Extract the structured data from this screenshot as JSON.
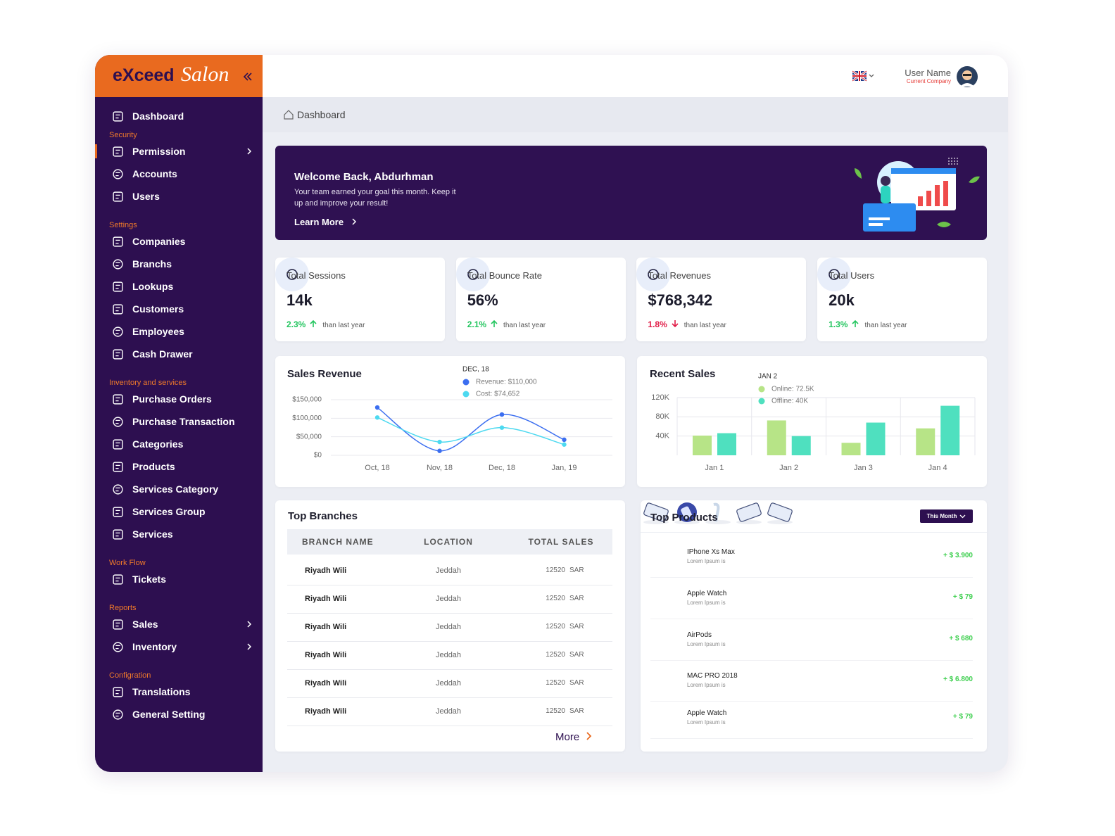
{
  "brand": {
    "name": "eXceed",
    "script": "Salon"
  },
  "sidebar": {
    "top": {
      "label": "Dashboard"
    },
    "sections": [
      {
        "title": "Security",
        "items": [
          {
            "label": "Permission",
            "expandable": true,
            "active": true
          },
          {
            "label": "Accounts"
          },
          {
            "label": "Users"
          }
        ]
      },
      {
        "title": "Settings",
        "items": [
          {
            "label": "Companies"
          },
          {
            "label": "Branchs"
          },
          {
            "label": "Lookups"
          },
          {
            "label": "Customers"
          },
          {
            "label": "Employees"
          },
          {
            "label": "Cash Drawer"
          }
        ]
      },
      {
        "title": "Inventory and services",
        "items": [
          {
            "label": "Purchase Orders"
          },
          {
            "label": "Purchase Transaction"
          },
          {
            "label": "Categories"
          },
          {
            "label": "Products"
          },
          {
            "label": "Services Category"
          },
          {
            "label": "Services Group"
          },
          {
            "label": "Services"
          }
        ]
      },
      {
        "title": "Work Flow",
        "items": [
          {
            "label": "Tickets"
          }
        ]
      },
      {
        "title": "Reports",
        "items": [
          {
            "label": "Sales",
            "expandable": true
          },
          {
            "label": "Inventory",
            "expandable": true
          }
        ]
      },
      {
        "title": "Configration",
        "items": [
          {
            "label": "Translations"
          },
          {
            "label": "General Setting"
          }
        ]
      }
    ]
  },
  "topbar": {
    "user": "User Name",
    "company": "Current Company"
  },
  "breadcrumb": "Dashboard",
  "banner": {
    "title": "Welcome Back, Abdurhman",
    "text": "Your team earned your goal this month. Keep it up and improve your result!",
    "link": "Learn More"
  },
  "stats": [
    {
      "label": "Total Sessions",
      "value": "14k",
      "change": "2.3%",
      "trend": "up",
      "note": "than last year"
    },
    {
      "label": "Total Bounce Rate",
      "value": "56%",
      "change": "2.1%",
      "trend": "up",
      "note": "than last year"
    },
    {
      "label": "Total Revenues",
      "value": "$768,342",
      "change": "1.8%",
      "trend": "down",
      "note": "than last year"
    },
    {
      "label": "Total Users",
      "value": "20k",
      "change": "1.3%",
      "trend": "up",
      "note": "than last year"
    }
  ],
  "chart_data": [
    {
      "type": "line",
      "title": "Sales Revenue",
      "categories": [
        "Oct, 18",
        "Nov, 18",
        "Dec, 18",
        "Jan, 19"
      ],
      "series": [
        {
          "color": "#3b6ef0",
          "values": [
            129000,
            12000,
            110000,
            42000
          ]
        },
        {
          "color": "#4dd9f0",
          "values": [
            102000,
            36000,
            74652,
            29000
          ]
        }
      ],
      "ylim": [
        0,
        150000
      ],
      "yticks": [
        {
          "value": 0,
          "label": "$0"
        },
        {
          "value": 50000,
          "label": "$50,000"
        },
        {
          "value": 100000,
          "label": "$100,000"
        },
        {
          "value": 150000,
          "label": "$150,000"
        }
      ],
      "grid": true,
      "tooltip": {
        "title": "DEC, 18",
        "items": [
          "Revenue: $110,000",
          "Cost: $74,652"
        ]
      }
    },
    {
      "type": "bar",
      "title": "Recent Sales",
      "categories": [
        "Jan 1",
        "Jan 2",
        "Jan 3",
        "Jan 4"
      ],
      "series": [
        {
          "color": "#b7e487",
          "values": [
            41000,
            72500,
            26000,
            56000
          ]
        },
        {
          "color": "#4fe0bf",
          "values": [
            46000,
            40000,
            68000,
            103000
          ]
        }
      ],
      "ylim": [
        0,
        120000
      ],
      "yticks": [
        {
          "value": 40000,
          "label": "40K"
        },
        {
          "value": 80000,
          "label": "80K"
        },
        {
          "value": 120000,
          "label": "120K"
        }
      ],
      "grid": true,
      "tooltip": {
        "title": "JAN 2",
        "items": [
          "Online: 72.5K",
          "Offline: 40K"
        ]
      }
    }
  ],
  "top_branches": {
    "title": "Top Branches",
    "columns": [
      "BRANCH NAME",
      "LOCATION",
      "TOTAL SALES"
    ],
    "rows": [
      [
        "Riyadh Wili",
        "Jeddah",
        "12520",
        "SAR"
      ],
      [
        "Riyadh Wili",
        "Jeddah",
        "12520",
        "SAR"
      ],
      [
        "Riyadh Wili",
        "Jeddah",
        "12520",
        "SAR"
      ],
      [
        "Riyadh Wili",
        "Jeddah",
        "12520",
        "SAR"
      ],
      [
        "Riyadh Wili",
        "Jeddah",
        "12520",
        "SAR"
      ],
      [
        "Riyadh Wili",
        "Jeddah",
        "12520",
        "SAR"
      ]
    ],
    "more": "More"
  },
  "top_products": {
    "title": "Top Products",
    "filter": "This Month",
    "items": [
      {
        "name": "IPhone Xs Max",
        "subtitle": "Lorem Ipsum is",
        "price": "+ $ 3.900"
      },
      {
        "name": "Apple Watch",
        "subtitle": "Lorem Ipsum is",
        "price": "+ $ 79"
      },
      {
        "name": "AirPods",
        "subtitle": "Lorem Ipsum is",
        "price": "+ $ 680"
      },
      {
        "name": "MAC PRO 2018",
        "subtitle": "Lorem Ipsum is",
        "price": "+ $ 6.800"
      },
      {
        "name": "Apple Watch",
        "subtitle": "Lorem Ipsum is",
        "price": "+ $ 79"
      }
    ]
  }
}
